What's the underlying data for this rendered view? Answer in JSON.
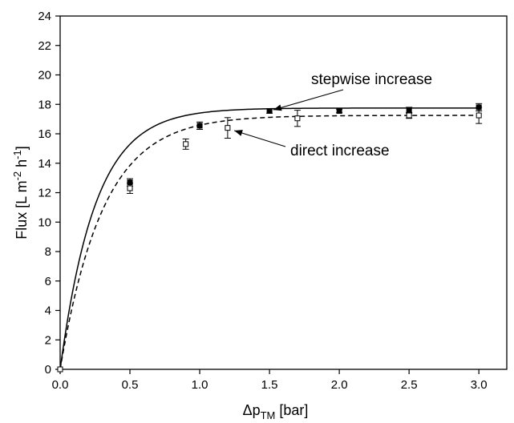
{
  "chart_data": {
    "type": "scatter",
    "xlabel": {
      "main": "Δp",
      "sub": "TM",
      "unit": " [bar]"
    },
    "ylabel": {
      "pre": "Flux [L m",
      "sup1": "-2",
      "mid": " h",
      "sup2": "-1",
      "post": "]"
    },
    "xlim": [
      0,
      3.2
    ],
    "ylim": [
      0,
      24
    ],
    "x_ticks": [
      "0.0",
      "0.5",
      "1.0",
      "1.5",
      "2.0",
      "2.5",
      "3.0"
    ],
    "y_ticks": [
      "0",
      "2",
      "4",
      "6",
      "8",
      "10",
      "12",
      "14",
      "16",
      "18",
      "20",
      "22",
      "24"
    ],
    "series": [
      {
        "name": "stepwise increase",
        "marker": "filled-square",
        "line": "solid",
        "points": [
          {
            "x": 0.5,
            "y": 12.7,
            "err": 0.25
          },
          {
            "x": 1.0,
            "y": 16.55,
            "err": 0.25
          },
          {
            "x": 1.5,
            "y": 17.55,
            "err": 0.15
          },
          {
            "x": 2.0,
            "y": 17.55,
            "err": 0.12
          },
          {
            "x": 2.5,
            "y": 17.6,
            "err": 0.2
          },
          {
            "x": 3.0,
            "y": 17.8,
            "err": 0.25
          }
        ],
        "fit": {
          "a": 17.75,
          "k": 3.95
        }
      },
      {
        "name": "direct increase",
        "marker": "open-square",
        "line": "dashed",
        "points": [
          {
            "x": 0.0,
            "y": 0.0,
            "err": 0
          },
          {
            "x": 0.5,
            "y": 12.3,
            "err": 0.35
          },
          {
            "x": 0.9,
            "y": 15.3,
            "err": 0.35
          },
          {
            "x": 1.2,
            "y": 16.4,
            "err": 0.7
          },
          {
            "x": 1.7,
            "y": 17.05,
            "err": 0.55
          },
          {
            "x": 2.5,
            "y": 17.25,
            "err": 0.2
          },
          {
            "x": 3.0,
            "y": 17.25,
            "err": 0.55
          }
        ],
        "fit": {
          "a": 17.25,
          "k": 3.25
        }
      }
    ],
    "annotations": [
      {
        "text": "stepwise increase",
        "target": {
          "x": 1.5,
          "y": 17.55
        }
      },
      {
        "text": "direct increase",
        "target": {
          "x": 1.22,
          "y": 16.3
        }
      }
    ],
    "grid": false,
    "legend": "none"
  }
}
